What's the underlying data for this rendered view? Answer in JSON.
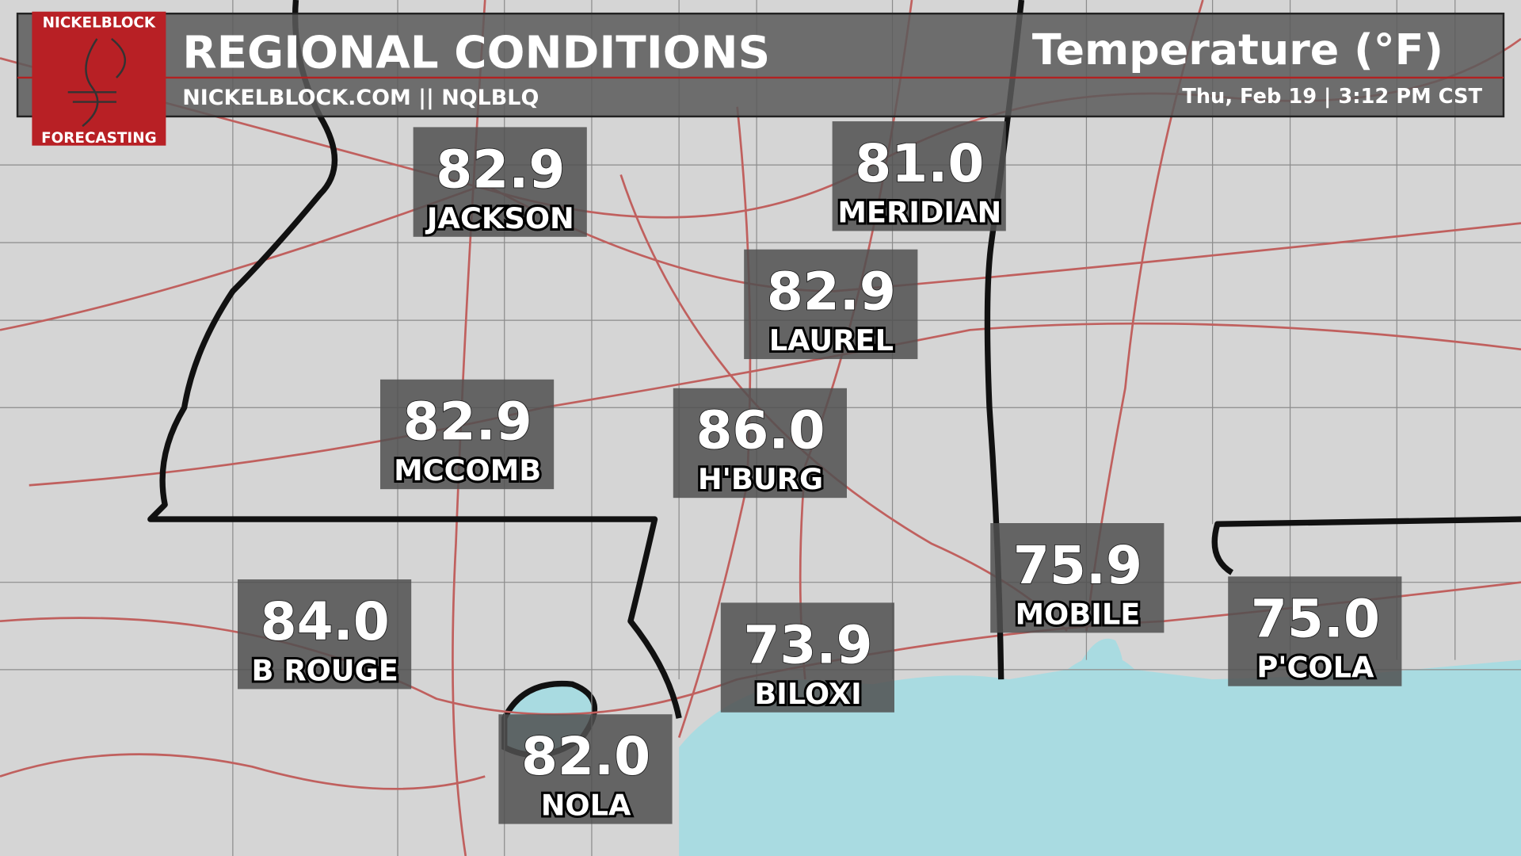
{
  "header": {
    "title": "REGIONAL CONDITIONS",
    "subtitle": "NICKELBLOCK.COM || NQLBLQ",
    "parameter": "Temperature (°F)",
    "timestamp": "Thu, Feb 19 | 3:12 PM CST"
  },
  "logo": {
    "top": "NICKELBLOCK",
    "bottom": "FORECASTING"
  },
  "stations": [
    {
      "value": "82.9",
      "name": "JACKSON"
    },
    {
      "value": "81.0",
      "name": "MERIDIAN"
    },
    {
      "value": "82.9",
      "name": "LAUREL"
    },
    {
      "value": "82.9",
      "name": "MCCOMB"
    },
    {
      "value": "86.0",
      "name": "H'BURG"
    },
    {
      "value": "84.0",
      "name": "B ROUGE"
    },
    {
      "value": "73.9",
      "name": "BILOXI"
    },
    {
      "value": "75.9",
      "name": "MOBILE"
    },
    {
      "value": "75.0",
      "name": "P'COLA"
    },
    {
      "value": "82.0",
      "name": "NOLA"
    }
  ]
}
